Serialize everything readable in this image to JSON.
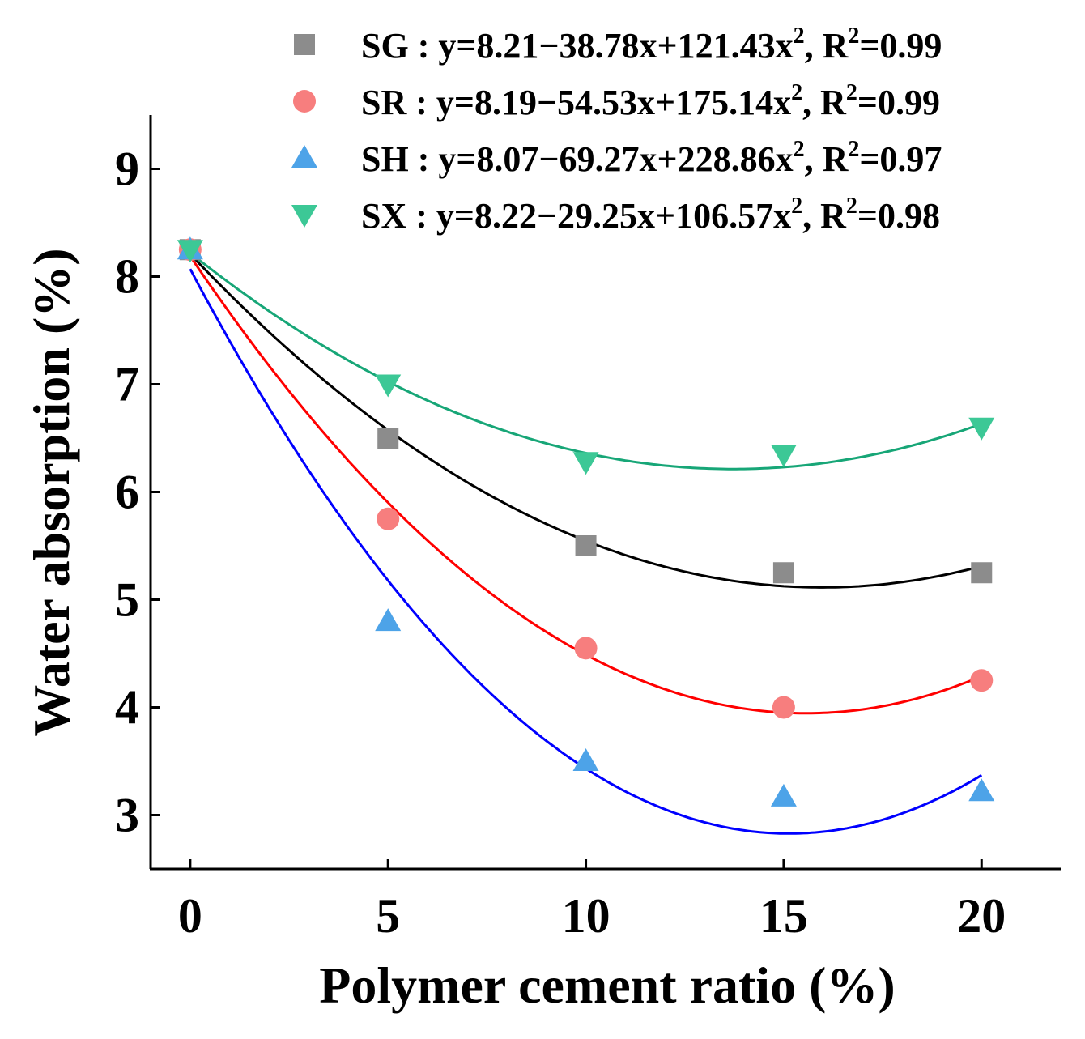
{
  "chart_data": {
    "type": "scatter",
    "title": "",
    "xlabel": "Polymer cement ratio (%)",
    "ylabel": "Water absorption (%)",
    "x": [
      0,
      5,
      10,
      15,
      20
    ],
    "xticks": [
      "0",
      "5",
      "10",
      "15",
      "20"
    ],
    "yticks": [
      "3",
      "4",
      "5",
      "6",
      "7",
      "8",
      "9"
    ],
    "xlim": [
      -1,
      22
    ],
    "ylim": [
      2.5,
      9.5
    ],
    "legend_position": "top-right",
    "series": [
      {
        "name": "SG",
        "marker": "square",
        "marker_color": "#8c8c8c",
        "line_color": "#000000",
        "values": [
          8.25,
          6.5,
          5.5,
          5.25,
          5.25
        ],
        "fit": {
          "a": 8.21,
          "b": -38.78,
          "c": 121.43
        },
        "legend_parts": [
          "SG : y=8.21−38.78x+121.43x",
          "2",
          ", R",
          "2",
          "=0.99"
        ]
      },
      {
        "name": "SR",
        "marker": "circle",
        "marker_color": "#f77e7e",
        "line_color": "#ff0000",
        "values": [
          8.25,
          5.75,
          4.55,
          4.0,
          4.25
        ],
        "fit": {
          "a": 8.19,
          "b": -54.53,
          "c": 175.14
        },
        "legend_parts": [
          "SR : y=8.19−54.53x+175.14x",
          "2",
          ", R",
          "2",
          "=0.99"
        ]
      },
      {
        "name": "SH",
        "marker": "triangle-up",
        "marker_color": "#4da3e8",
        "line_color": "#0000ff",
        "values": [
          8.25,
          4.8,
          3.5,
          3.17,
          3.22
        ],
        "fit": {
          "a": 8.07,
          "b": -69.27,
          "c": 228.86
        },
        "legend_parts": [
          "SH : y=8.07−69.27x+228.86x",
          "2",
          ", R",
          "2",
          "=0.97"
        ]
      },
      {
        "name": "SX",
        "marker": "triangle-down",
        "marker_color": "#3cc896",
        "line_color": "#17a677",
        "values": [
          8.25,
          7.0,
          6.28,
          6.35,
          6.6
        ],
        "fit": {
          "a": 8.22,
          "b": -29.25,
          "c": 106.57
        },
        "legend_parts": [
          "SX : y=8.22−29.25x+106.57x",
          "2",
          ", R",
          "2",
          "=0.98"
        ]
      }
    ]
  }
}
